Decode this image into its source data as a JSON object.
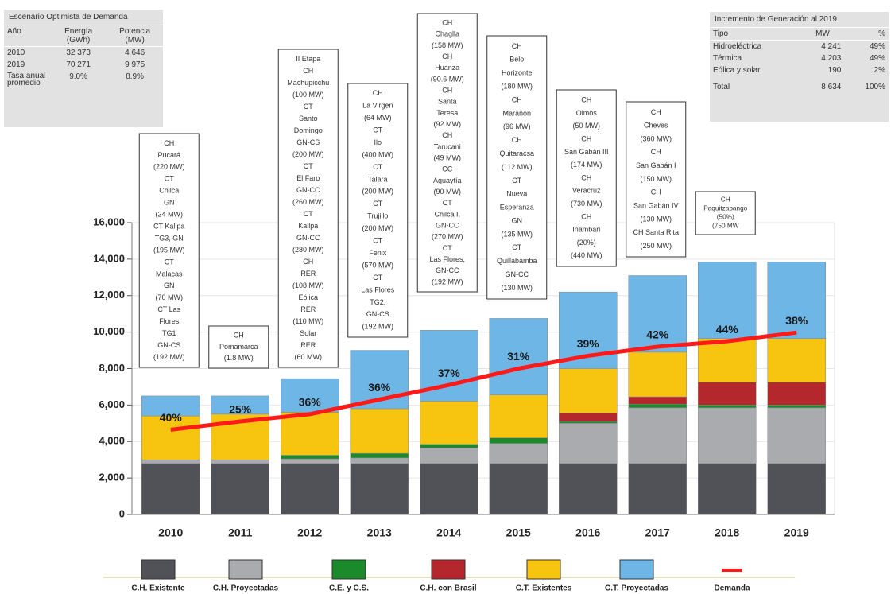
{
  "chart_data": {
    "type": "stacked_bar",
    "categories": [
      "2010",
      "2011",
      "2012",
      "2013",
      "2014",
      "2015",
      "2016",
      "2017",
      "2018",
      "2019"
    ],
    "series": [
      {
        "name": "C.H. Existente",
        "color": "#505258",
        "values": [
          2800,
          2800,
          2800,
          2800,
          2800,
          2800,
          2800,
          2800,
          2800,
          2800
        ]
      },
      {
        "name": "C.H. Proyectadas",
        "color": "#a9abae",
        "values": [
          200,
          200,
          250,
          300,
          850,
          1100,
          2200,
          3050,
          3050,
          3050
        ]
      },
      {
        "name": "C.E. y C.S.",
        "color": "#1a8a2a",
        "values": [
          0,
          0,
          200,
          250,
          200,
          300,
          100,
          200,
          150,
          150
        ]
      },
      {
        "name": "C.H. con Brasil",
        "color": "#b3272d",
        "values": [
          0,
          0,
          0,
          0,
          0,
          0,
          450,
          400,
          1250,
          1250
        ]
      },
      {
        "name": "C.T. Existentes",
        "color": "#f7c410",
        "values": [
          2400,
          2500,
          2350,
          2450,
          2350,
          2350,
          2450,
          2450,
          2400,
          2400
        ]
      },
      {
        "name": "C.T. Proyectadas",
        "color": "#6eb6e6",
        "values": [
          1100,
          1000,
          1850,
          3200,
          3900,
          4200,
          4200,
          4200,
          4200,
          4200
        ]
      },
      {
        "name": "Demanda",
        "color": "#ff1a1a",
        "kind": "line",
        "values": [
          4646,
          5100,
          5500,
          6300,
          7100,
          8000,
          8700,
          9200,
          9500,
          9975
        ]
      }
    ],
    "reserve_labels": [
      "40%",
      "25%",
      "36%",
      "36%",
      "37%",
      "31%",
      "39%",
      "42%",
      "44%",
      "38%"
    ],
    "ylim": [
      0,
      16000
    ],
    "yticks": [
      0,
      {
        "value": 2000,
        "label": "2,000"
      },
      {
        "value": 4000,
        "label": "4,000"
      },
      {
        "value": 6000,
        "label": "6,000"
      },
      {
        "value": 8000,
        "label": "8,000"
      },
      {
        "value": 10000,
        "label": "10,000"
      },
      {
        "value": 12000,
        "label": "12,000"
      },
      {
        "value": 14000,
        "label": "14,000"
      },
      {
        "value": 16000,
        "label": "16,000"
      }
    ],
    "grid": true,
    "annotations": [
      [
        "CH",
        "Pucará",
        "(220 MW)",
        "CT",
        "Chilca",
        "GN",
        "(24 MW)",
        "CT Kallpa",
        "TG3, GN",
        "(195 MW)",
        "CT",
        "Malacas",
        "GN",
        "(70 MW)",
        "CT Las",
        "Flores",
        "TG1",
        "GN-CS",
        "(192 MW)"
      ],
      [
        "CH",
        "Pomamarca",
        "(1.8 MW)"
      ],
      [
        "II Etapa",
        "CH",
        "Machupicchu",
        "(100 MW)",
        "CT",
        "Santo",
        "Domingo",
        "GN-CS",
        "(200 MW)",
        "CT",
        "El Faro",
        "GN-CC",
        "(260 MW)",
        "CT",
        "Kallpa",
        "GN-CC",
        "(280 MW)",
        "CH",
        "RER",
        "(108 MW)",
        "Eólica",
        "RER",
        "(110 MW)",
        "Solar",
        "RER",
        "(60 MW)"
      ],
      [
        "CH",
        "La Virgen",
        "(64 MW)",
        "CT",
        "Ilo",
        "(400 MW)",
        "CT",
        "Talara",
        "(200 MW)",
        "CT",
        "Trujillo",
        "(200 MW)",
        "CT",
        "Fenix",
        "(570 MW)",
        "CT",
        "Las Flores",
        "TG2,",
        "GN-CS",
        "(192 MW)"
      ],
      [
        "CH",
        "Chaglla",
        "(158 MW)",
        "CH",
        "Huanza",
        "(90.6 MW)",
        "CH",
        "Santa",
        "Teresa",
        "(92 MW)",
        "CH",
        "Tarucani",
        "(49 MW)",
        "CC",
        "Aguaytía",
        "(90 MW)",
        "CT",
        "Chilca I,",
        "GN-CC",
        "(270 MW)",
        "CT",
        "Las Flores,",
        "GN-CC",
        "(192 MW)"
      ],
      [
        "CH",
        "Belo",
        "Horizonte",
        "(180 MW)",
        "CH",
        "Marañón",
        "(96 MW)",
        "CH",
        "Quitaracsa",
        "(112 MW)",
        "CT",
        "Nueva",
        "Esperanza",
        "GN",
        "(135 MW)",
        "CT",
        "Quillabamba",
        "GN-CC",
        "(130 MW)"
      ],
      [
        "CH",
        "Olmos",
        "(50 MW)",
        "CH",
        "San Gabán III",
        "(174 MW)",
        "CH",
        "Veracruz",
        "(730 MW)",
        "CH",
        "Inambari",
        "(20%)",
        "(440 MW)"
      ],
      [
        "CH",
        "Cheves",
        "(360 MW)",
        "CH",
        "San Gabán I",
        "(150 MW)",
        "CH",
        "San Gabán IV",
        "(130 MW)",
        "CH Santa Rita",
        "(250 MW)"
      ],
      [
        "CH",
        "Paquitzapango",
        "(50%)",
        "(750 MW"
      ]
    ]
  },
  "left_table": {
    "title": "Escenario Optimista de Demanda",
    "header": [
      "Año",
      "Energía (GWh)",
      "Potencia (MW)"
    ],
    "rows": [
      [
        "2010",
        "32 373",
        "4 646"
      ],
      [
        "2019",
        "70 271",
        "9 975"
      ],
      [
        "Tasa anual promedio",
        "9.0%",
        "8.9%"
      ]
    ]
  },
  "right_table": {
    "title": "Incremento de Generación al 2019",
    "header": [
      "Tipo",
      "MW",
      "%"
    ],
    "rows": [
      [
        "Hidroeléctrica",
        "4 241",
        "49%"
      ],
      [
        "Térmica",
        "4 203",
        "49%"
      ],
      [
        "Eólica y solar",
        "190",
        "2%"
      ],
      [
        "Total",
        "8 634",
        "100%"
      ]
    ]
  }
}
